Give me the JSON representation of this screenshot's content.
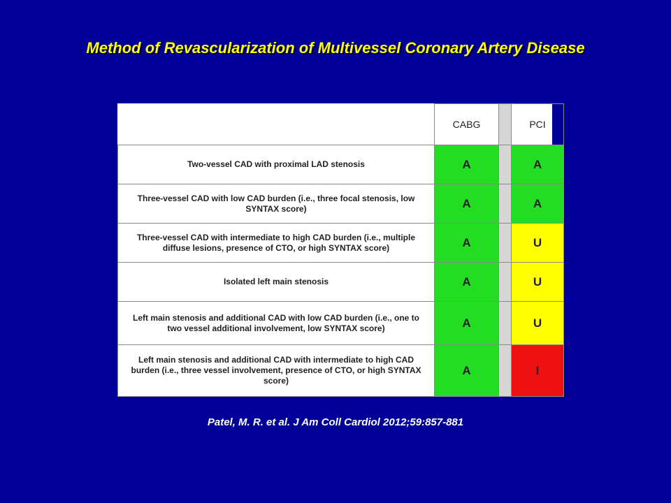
{
  "title": "Method of Revascularization of Multivessel Coronary Artery Disease",
  "table": {
    "headers": {
      "cabg": "CABG",
      "pci": "PCI"
    },
    "rows": [
      {
        "description": "Two-vessel CAD with proximal LAD stenosis",
        "cabg": "A",
        "pci": "A"
      },
      {
        "description": "Three-vessel CAD with low CAD burden (i.e., three focal stenosis, low SYNTAX score)",
        "cabg": "A",
        "pci": "A"
      },
      {
        "description": "Three-vessel CAD with intermediate to high CAD burden (i.e., multiple diffuse lesions, presence of CTO, or high SYNTAX score)",
        "cabg": "A",
        "pci": "U"
      },
      {
        "description": "Isolated left main stenosis",
        "cabg": "A",
        "pci": "U"
      },
      {
        "description": "Left main stenosis and additional CAD with low CAD burden (i.e., one to two vessel additional involvement, low SYNTAX score)",
        "cabg": "A",
        "pci": "U"
      },
      {
        "description": "Left main stenosis and additional CAD with intermediate to high CAD burden (i.e., three vessel involvement, presence of CTO, or high SYNTAX score)",
        "cabg": "A",
        "pci": "I"
      }
    ]
  },
  "colors": {
    "background": "#000099",
    "title": "#ffff00",
    "appropriate": "#22dd22",
    "uncertain": "#ffff00",
    "inappropriate": "#ee1111"
  },
  "citation": "Patel, M. R. et al. J Am Coll Cardiol 2012;59:857-881"
}
